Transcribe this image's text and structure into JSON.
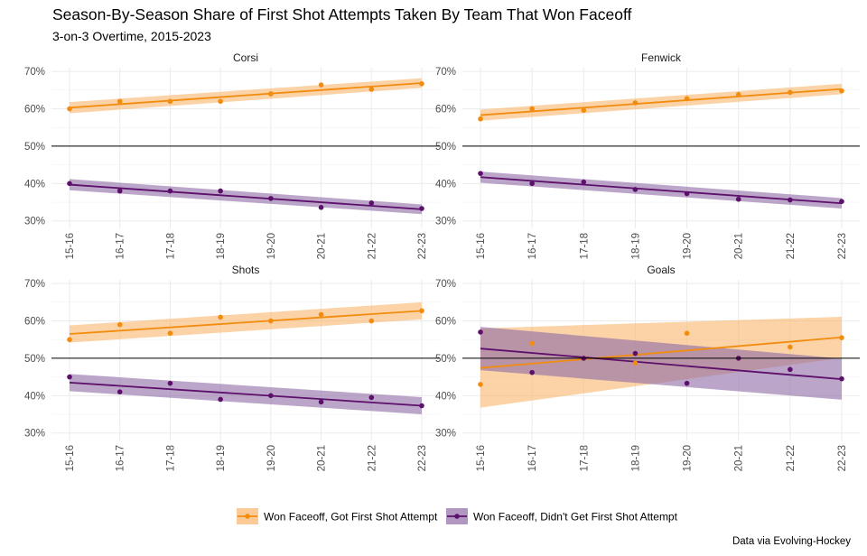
{
  "title": "Season-By-Season Share of First Shot Attempts Taken By Team That Won Faceoff",
  "subtitle": "3-on-3 Overtime, 2015-2023",
  "caption": "Data via Evolving-Hockey",
  "colors": {
    "won_got_first": "#F28C0F",
    "won_got_first_band": "#F8B56A",
    "won_not_first": "#5C0F6B",
    "won_not_first_band": "#8E6AA6",
    "reference_line": "#000000",
    "grid": "#EBEBEB"
  },
  "chart_data": {
    "type": "scatter",
    "facets": [
      "Corsi",
      "Fenwick",
      "Shots",
      "Goals"
    ],
    "categories": [
      "15-16",
      "16-17",
      "17-18",
      "18-19",
      "19-20",
      "20-21",
      "21-22",
      "22-23"
    ],
    "y_ticks": [
      "30%",
      "40%",
      "50%",
      "60%",
      "70%"
    ],
    "ylim": [
      0.28,
      0.71
    ],
    "reference_y": 0.5,
    "grid": true,
    "legend_position": "bottom",
    "series_names": [
      "Won Faceoff, Got First Shot Attempt",
      "Won Faceoff, Didn't Get First Shot Attempt"
    ],
    "panels": [
      {
        "facet": "Corsi",
        "series": [
          {
            "name": "Won Faceoff, Got First Shot Attempt",
            "values": [
              0.6,
              0.62,
              0.62,
              0.62,
              0.64,
              0.664,
              0.652,
              0.667
            ],
            "fit": [
              0.603,
              0.669
            ],
            "band": [
              0.015,
              0.013
            ]
          },
          {
            "name": "Won Faceoff, Didn't Get First Shot Attempt",
            "values": [
              0.4,
              0.38,
              0.38,
              0.38,
              0.36,
              0.336,
              0.348,
              0.333
            ],
            "fit": [
              0.397,
              0.331
            ],
            "band": [
              0.015,
              0.013
            ]
          }
        ]
      },
      {
        "facet": "Fenwick",
        "series": [
          {
            "name": "Won Faceoff, Got First Shot Attempt",
            "values": [
              0.573,
              0.6,
              0.596,
              0.616,
              0.627,
              0.638,
              0.644,
              0.648
            ],
            "fit": [
              0.583,
              0.653
            ],
            "band": [
              0.015,
              0.014
            ]
          },
          {
            "name": "Won Faceoff, Didn't Get First Shot Attempt",
            "values": [
              0.427,
              0.4,
              0.404,
              0.384,
              0.373,
              0.358,
              0.356,
              0.352
            ],
            "fit": [
              0.417,
              0.347
            ],
            "band": [
              0.015,
              0.014
            ]
          }
        ]
      },
      {
        "facet": "Shots",
        "series": [
          {
            "name": "Won Faceoff, Got First Shot Attempt",
            "values": [
              0.55,
              0.59,
              0.567,
              0.61,
              0.6,
              0.617,
              0.6,
              0.627
            ],
            "fit": [
              0.565,
              0.627
            ],
            "band": [
              0.023,
              0.023
            ]
          },
          {
            "name": "Won Faceoff, Didn't Get First Shot Attempt",
            "values": [
              0.45,
              0.41,
              0.433,
              0.39,
              0.4,
              0.383,
              0.395,
              0.373
            ],
            "fit": [
              0.435,
              0.373
            ],
            "band": [
              0.023,
              0.023
            ]
          }
        ]
      },
      {
        "facet": "Goals",
        "series": [
          {
            "name": "Won Faceoff, Got First Shot Attempt",
            "values": [
              0.43,
              0.54,
              0.5,
              0.487,
              0.567,
              0.5,
              0.53,
              0.555
            ],
            "fit": [
              0.474,
              0.556
            ],
            "band": [
              0.106,
              0.055
            ]
          },
          {
            "name": "Won Faceoff, Didn't Get First Shot Attempt",
            "values": [
              0.57,
              0.462,
              0.5,
              0.513,
              0.433,
              0.5,
              0.47,
              0.445
            ],
            "fit": [
              0.526,
              0.444
            ],
            "band": [
              0.058,
              0.055
            ]
          }
        ]
      }
    ]
  }
}
